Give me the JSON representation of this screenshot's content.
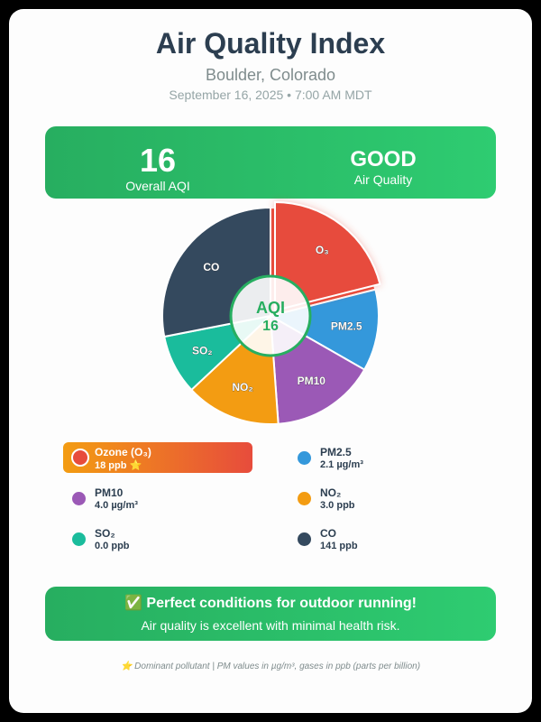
{
  "header": {
    "title": "Air Quality Index",
    "location": "Boulder, Colorado",
    "datetime": "September 16, 2025 • 7:00 AM MDT"
  },
  "summary": {
    "aqi_value": "16",
    "aqi_label": "Overall AQI",
    "category": "GOOD",
    "category_label": "Air Quality",
    "color": "#27ae60"
  },
  "center_badge": {
    "label": "AQI",
    "value": "16"
  },
  "legend": [
    {
      "name": "Ozone (O₃)",
      "value": "18 ppb ⭐",
      "color": "#e74c3c",
      "dominant": true
    },
    {
      "name": "PM2.5",
      "value": "2.1 µg/m³",
      "color": "#3498db"
    },
    {
      "name": "PM10",
      "value": "4.0 µg/m³",
      "color": "#9b59b6"
    },
    {
      "name": "NO₂",
      "value": "3.0 ppb",
      "color": "#f39c12"
    },
    {
      "name": "SO₂",
      "value": "0.0 ppb",
      "color": "#1abc9c"
    },
    {
      "name": "CO",
      "value": "141 ppb",
      "color": "#34495e"
    }
  ],
  "recommendation": {
    "title": "✅ Perfect conditions for outdoor running!",
    "text": "Air quality is excellent with minimal health risk."
  },
  "footnote": "⭐ Dominant pollutant | PM values in µg/m³, gases in ppb (parts per billion)",
  "chart_data": {
    "type": "pie",
    "title": "Air Quality Index",
    "center_label": "AQI 16",
    "categories": [
      "O₃",
      "PM2.5",
      "PM10",
      "NO₂",
      "SO₂",
      "CO"
    ],
    "values": [
      21.1,
      12.2,
      15.6,
      14.2,
      8.9,
      28.1
    ],
    "value_unit": "percent of pie (estimated from slice angles)",
    "raw_readings": [
      "18 ppb",
      "2.1 µg/m³",
      "4.0 µg/m³",
      "3.0 ppb",
      "0.0 ppb",
      "141 ppb"
    ],
    "colors": [
      "#e74c3c",
      "#3498db",
      "#9b59b6",
      "#f39c12",
      "#1abc9c",
      "#34495e"
    ],
    "exploded": "O₃",
    "legend_position": "bottom"
  }
}
